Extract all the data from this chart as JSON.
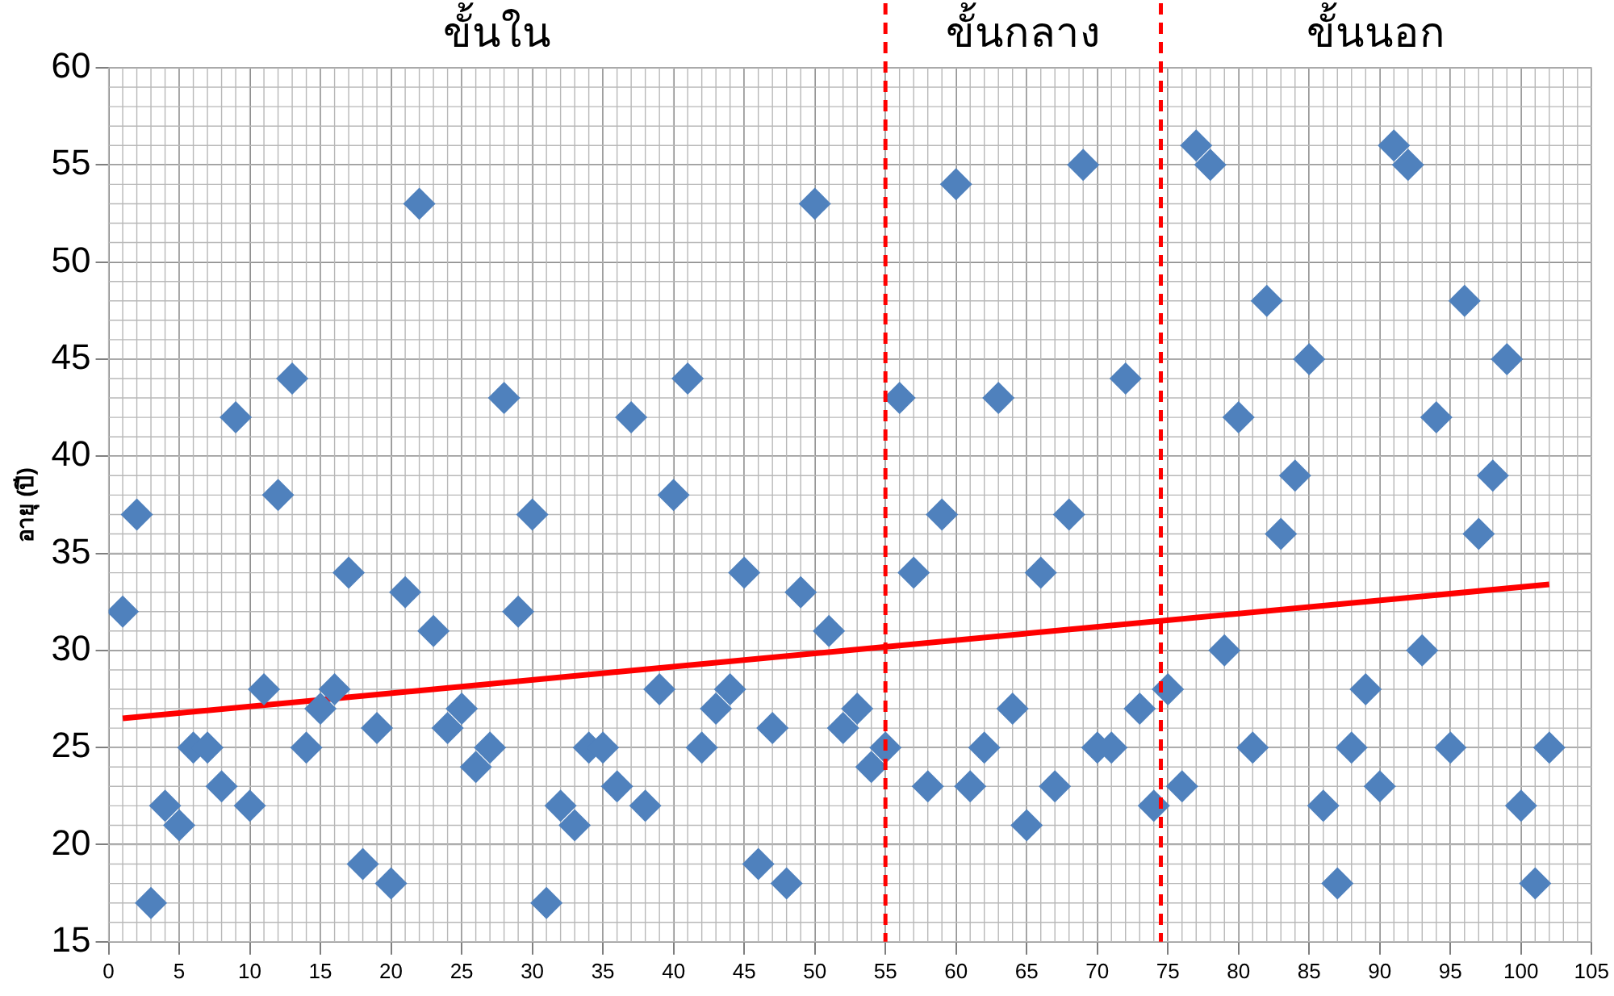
{
  "chart_data": {
    "type": "scatter",
    "ylabel": "อายุ (ปี)",
    "xlim": [
      0,
      105
    ],
    "xticks": [
      0,
      5,
      10,
      15,
      20,
      25,
      30,
      35,
      40,
      45,
      50,
      55,
      60,
      65,
      70,
      75,
      80,
      85,
      90,
      95,
      100,
      105
    ],
    "ylim": [
      15,
      60
    ],
    "yticks": [
      15,
      20,
      25,
      30,
      35,
      40,
      45,
      50,
      55,
      60
    ],
    "grid": true,
    "legend": false,
    "marker": "diamond",
    "series": [
      {
        "color": "#4f81bd",
        "x": [
          1,
          2,
          3,
          4,
          5,
          6,
          7,
          8,
          9,
          10,
          11,
          12,
          13,
          14,
          15,
          16,
          17,
          18,
          19,
          20,
          21,
          22,
          23,
          24,
          25,
          26,
          27,
          28,
          29,
          30,
          31,
          32,
          33,
          34,
          35,
          36,
          37,
          38,
          39,
          40,
          41,
          42,
          43,
          44,
          45,
          46,
          47,
          48,
          49,
          50,
          51,
          52,
          53,
          54,
          55,
          56,
          57,
          58,
          59,
          60,
          61,
          62,
          63,
          64,
          65,
          66,
          67,
          68,
          69,
          70,
          71,
          72,
          73,
          74,
          75,
          76,
          77,
          78,
          79,
          80,
          81,
          82,
          83,
          84,
          85,
          86,
          87,
          88,
          89,
          90,
          91,
          92,
          93,
          94,
          95,
          96,
          97,
          98,
          99,
          100,
          101,
          102
        ],
        "values": [
          32,
          37,
          17,
          22,
          21,
          25,
          25,
          23,
          42,
          22,
          28,
          38,
          44,
          25,
          27,
          28,
          34,
          19,
          26,
          18,
          33,
          53,
          31,
          26,
          27,
          24,
          25,
          43,
          32,
          37,
          17,
          22,
          21,
          25,
          25,
          23,
          42,
          22,
          28,
          38,
          44,
          25,
          27,
          28,
          34,
          19,
          26,
          18,
          33,
          53,
          31,
          26,
          27,
          24,
          25,
          43,
          34,
          23,
          37,
          54,
          23,
          25,
          43,
          27,
          21,
          34,
          23,
          37,
          55,
          25,
          25,
          44,
          27,
          22,
          28,
          23,
          56,
          55,
          30,
          42,
          25,
          48,
          36,
          39,
          45,
          22,
          18,
          25,
          28,
          23,
          56,
          55,
          30,
          42,
          25,
          48,
          36,
          39,
          45,
          22,
          18,
          25
        ]
      },
      {
        "type": "line",
        "color": "#ff0000",
        "marker": "none",
        "line_style": "solid",
        "x": [
          1,
          102
        ],
        "values": [
          26.5,
          33.4
        ]
      }
    ],
    "ref_lines": [
      {
        "axis": "x",
        "value": 55,
        "color": "#ff0000",
        "line_style": "dashed"
      },
      {
        "axis": "x",
        "value": 74.5,
        "color": "#ff0000",
        "line_style": "dashed"
      }
    ],
    "annotations": [
      "ขั้นใน",
      "ขั้นกลาง",
      "ขั้นนอก"
    ]
  }
}
